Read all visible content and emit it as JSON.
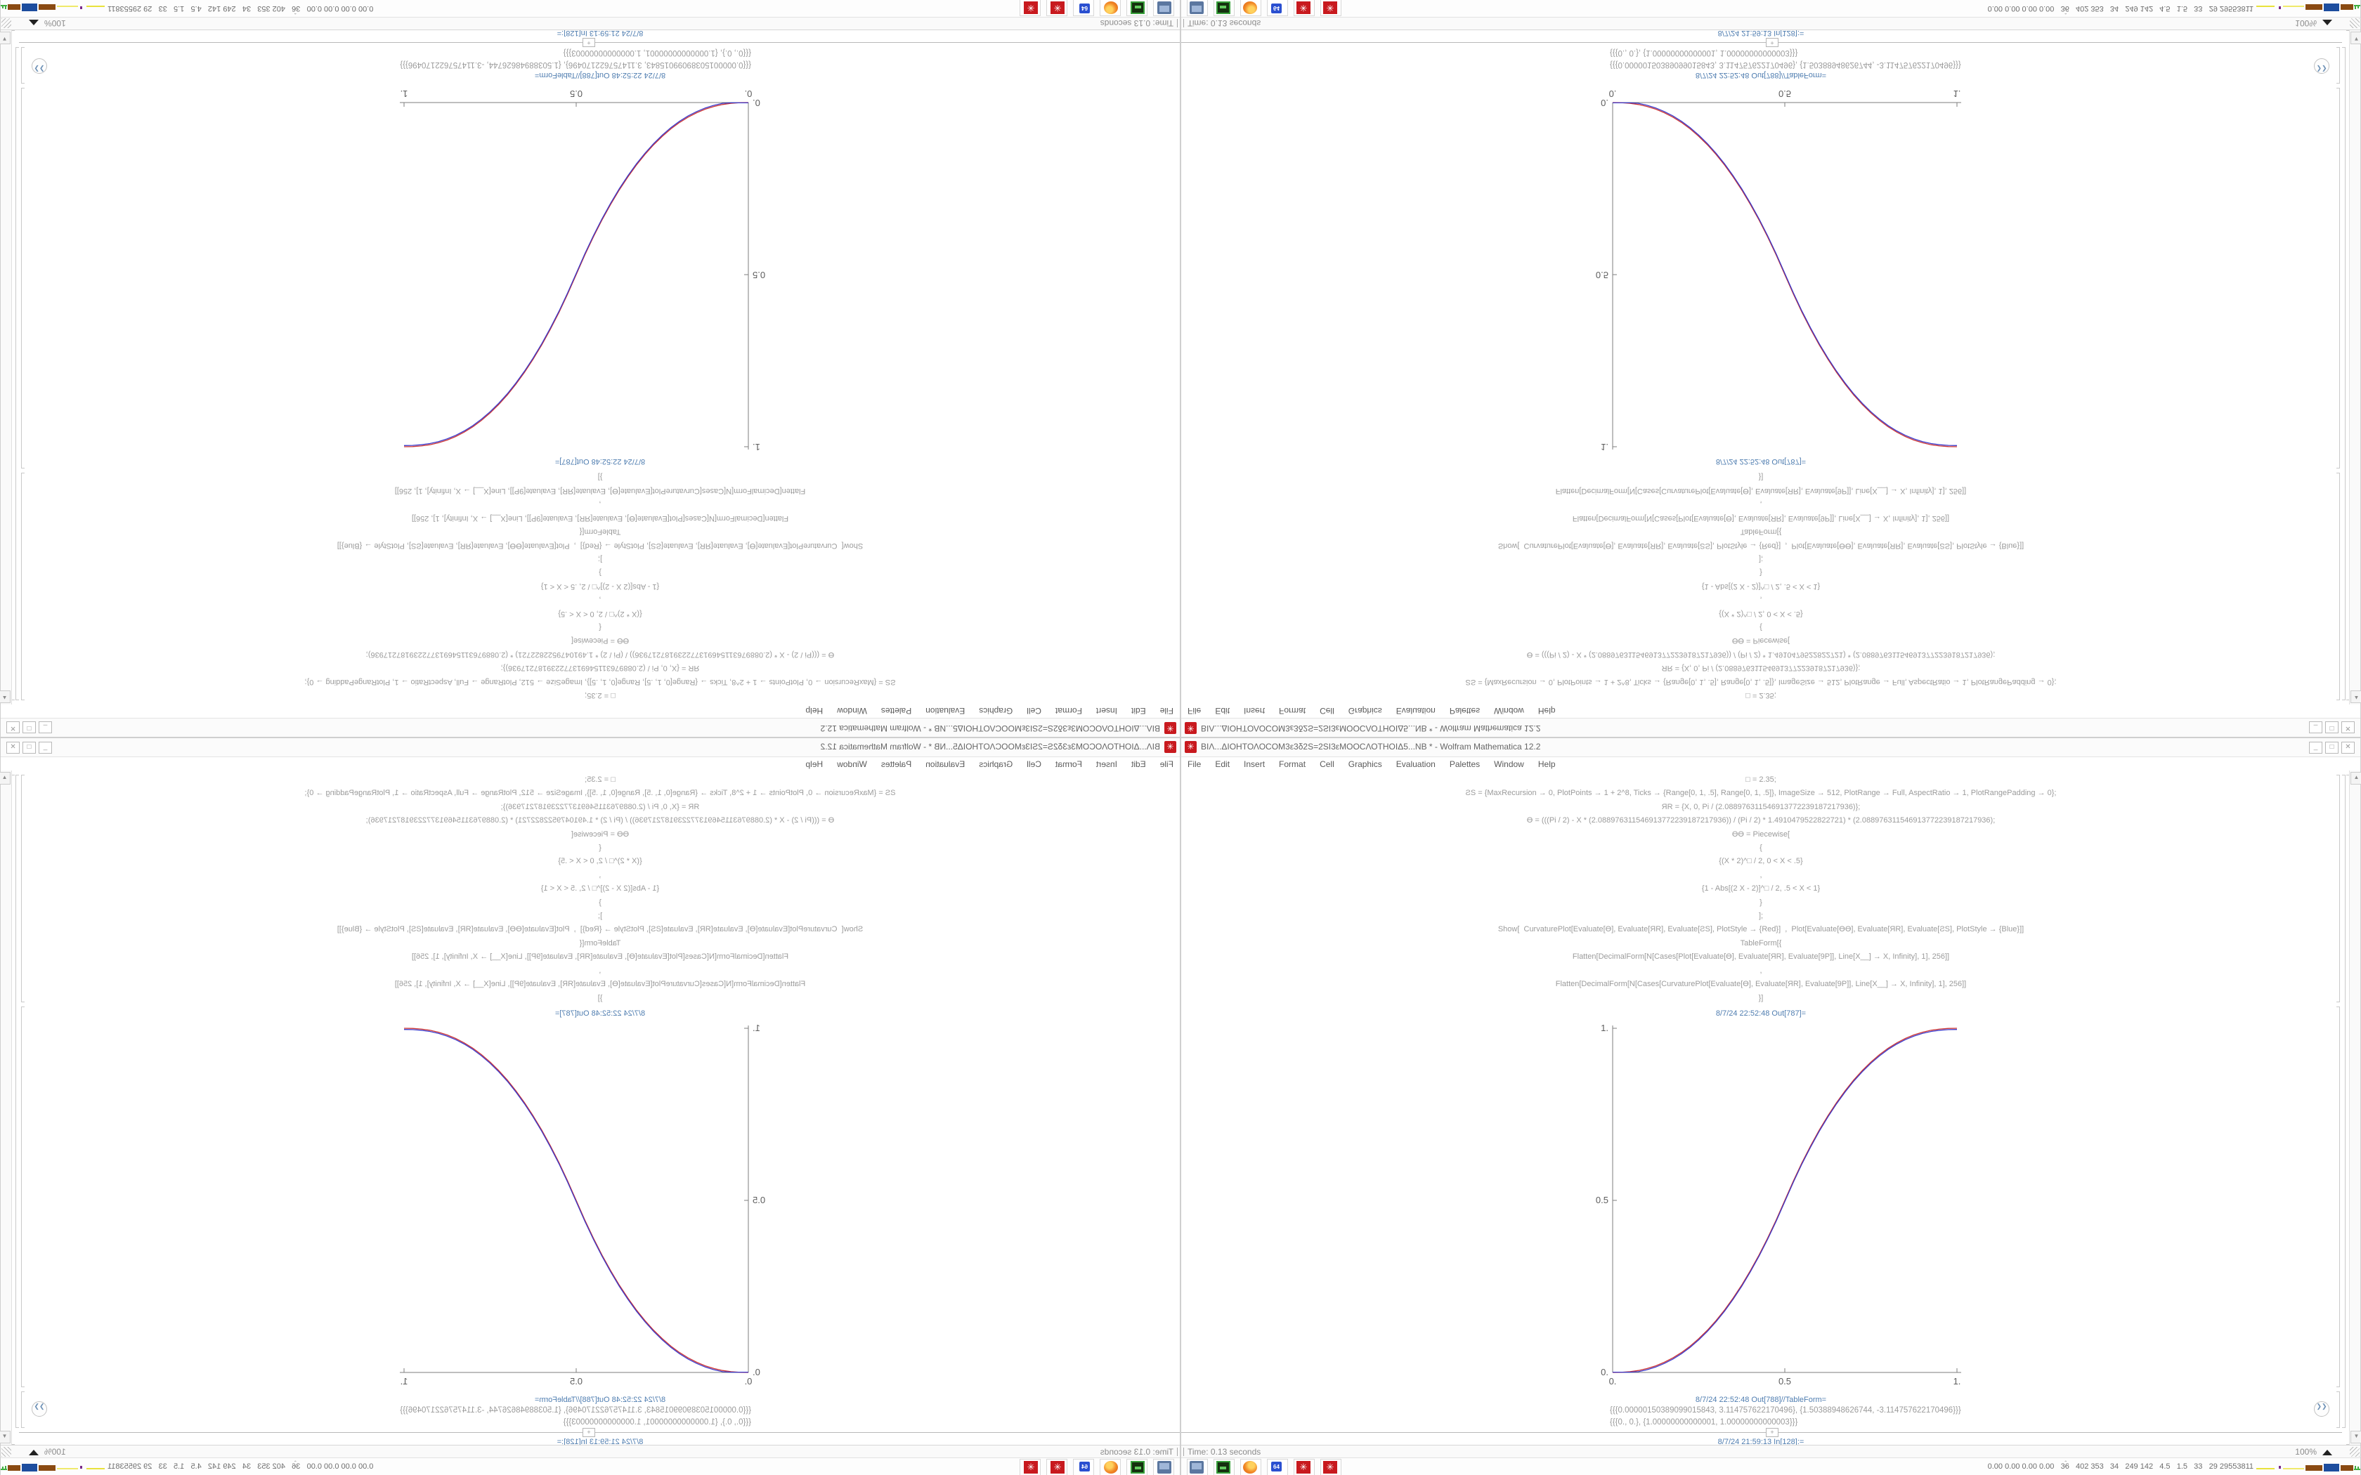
{
  "window": {
    "title": "ΒΙΛ...ΔΙΟΗΤΟΛΟCOM3ε3δ2S=2SΙ3εΜΟΟCΛΟΤΗΟΙΔ5...NB * - Wolfram Mathematica 12.2",
    "app_icon": "✳",
    "buttons": {
      "minimize": "_",
      "maximize": "□",
      "close": "✕"
    },
    "menu": [
      "File",
      "Edit",
      "Insert",
      "Format",
      "Cell",
      "Graphics",
      "Evaluation",
      "Palettes",
      "Window",
      "Help"
    ]
  },
  "notebook": {
    "code_lines": [
      "□ = 2.35;",
      "ƧS = {MaxRecursion → 0, PlotPoints → 1 + 2^8, Ticks → {Range[0, 1, .5], Range[0, 1, .5]}, ImageSize → 512, PlotRange → Full, AspectRatio → 1, PlotRangePadding → 0};",
      "ЯR = {X, 0, Pi / (2.088976311546913772239187217936)};",
      "Ɵ = (((Pi / 2) - X * (2.088976311546913772239187217936)) / (Pi / 2) * 1.4910479522822721) * (2.088976311546913772239187217936);",
      "ƟƟ = Piecewise[",
      "{",
      "{(X * 2)^□ / 2, 0 < X < .5}",
      ",",
      "{1 - Abs[(2 X - 2)]^□ / 2, .5 < X < 1}",
      "}",
      "];",
      "Show[  CurvaturePlot[Evaluate[Ɵ], Evaluate[ЯR], Evaluate[ƧS], PlotStyle → {Red}]  ,  Plot[Evaluate[ƟƟ], Evaluate[ЯR], Evaluate[ƧS], PlotStyle → {Blue}]]",
      "TableForm[{",
      "Flatten[DecimalForm[N[Cases[Plot[Evaluate[Ɵ], Evaluate[ЯR], Evaluate[9Ρ]], Line[X__] → X, Infinity], 1], 256]]",
      ",",
      "Flatten[DecimalForm[N[Cases[CurvaturePlot[Evaluate[Ɵ], Evaluate[ЯR], Evaluate[9Ρ]], Line[X__] → X, Infinity], 1], 256]]",
      "}]"
    ],
    "out1_label": "8/7/24 22:52:48 Out[787]=",
    "out2_label": "8/7/24 22:52:48 Out[788]//TableForm=",
    "in_label": "8/7/24 21:59:13 In[128]:=",
    "table_rows": [
      "{{{0.00000150389099015843, 3.114757622170496}, {1.50388948626744, -3.114757622170496}}}",
      "{{{0., 0.}, {1.00000000000001, 1.00000000000003}}}"
    ],
    "insert_marker": "+",
    "chevron_icon": "❯❯"
  },
  "chart_data": {
    "type": "line",
    "title": "",
    "xlabel": "",
    "ylabel": "",
    "xlim": [
      0,
      1
    ],
    "ylim": [
      0,
      1
    ],
    "x_ticks": [
      0,
      0.5,
      1
    ],
    "y_ticks": [
      0,
      0.5,
      1
    ],
    "x_tick_labels": [
      "0.",
      "0.5",
      "1."
    ],
    "y_tick_labels": [
      "0.",
      "0.5",
      "1."
    ],
    "grid": false,
    "legend_position": "none",
    "series": [
      {
        "name": "CurvaturePlot",
        "color": "#cc3333"
      },
      {
        "name": "Plot",
        "color": "#3a3acc"
      }
    ],
    "points": [
      [
        0,
        0
      ],
      [
        0.025,
        0.0004
      ],
      [
        0.05,
        0.0022
      ],
      [
        0.075,
        0.0058
      ],
      [
        0.1,
        0.0114
      ],
      [
        0.125,
        0.0192
      ],
      [
        0.15,
        0.0295
      ],
      [
        0.175,
        0.0424
      ],
      [
        0.2,
        0.058
      ],
      [
        0.225,
        0.0766
      ],
      [
        0.25,
        0.0981
      ],
      [
        0.275,
        0.1227
      ],
      [
        0.3,
        0.1505
      ],
      [
        0.325,
        0.1817
      ],
      [
        0.35,
        0.2163
      ],
      [
        0.375,
        0.2543
      ],
      [
        0.4,
        0.2959
      ],
      [
        0.425,
        0.3413
      ],
      [
        0.45,
        0.3903
      ],
      [
        0.475,
        0.4433
      ],
      [
        0.5,
        0.5
      ],
      [
        0.525,
        0.5567
      ],
      [
        0.55,
        0.6097
      ],
      [
        0.575,
        0.6587
      ],
      [
        0.6,
        0.7041
      ],
      [
        0.625,
        0.7457
      ],
      [
        0.65,
        0.7837
      ],
      [
        0.675,
        0.8183
      ],
      [
        0.7,
        0.8495
      ],
      [
        0.725,
        0.8773
      ],
      [
        0.75,
        0.9019
      ],
      [
        0.775,
        0.9234
      ],
      [
        0.8,
        0.942
      ],
      [
        0.825,
        0.9576
      ],
      [
        0.85,
        0.9705
      ],
      [
        0.875,
        0.9808
      ],
      [
        0.9,
        0.9886
      ],
      [
        0.925,
        0.9942
      ],
      [
        0.95,
        0.9978
      ],
      [
        0.975,
        0.9996
      ],
      [
        1,
        1
      ]
    ]
  },
  "statusbar": {
    "left": "Time: 0.13 seconds",
    "zoom": "100%"
  },
  "taskbar": {
    "icons": [
      "system-monitor",
      "terminal",
      "firefox",
      "vice64",
      "mathematica",
      "mathematica"
    ],
    "mathematica_glyph": "✳",
    "tray_chevrons": "ˆ\nˆ",
    "tray_text": "0.00 0.00 0.00 0.00   36   402 353   34   249 142   4.5   1.5   33   29 29553811"
  }
}
